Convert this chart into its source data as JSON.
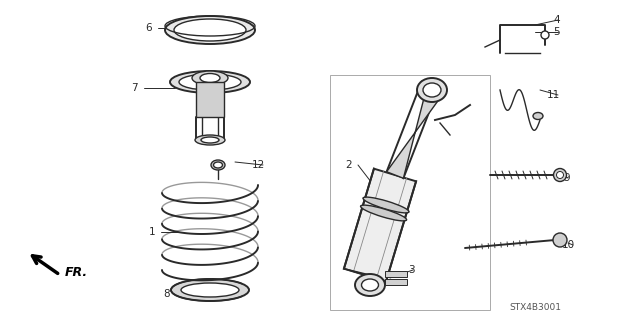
{
  "bg_color": "#ffffff",
  "line_color": "#2a2a2a",
  "diagram_code": "STX4B3001",
  "figsize": [
    6.4,
    3.19
  ],
  "dpi": 100
}
